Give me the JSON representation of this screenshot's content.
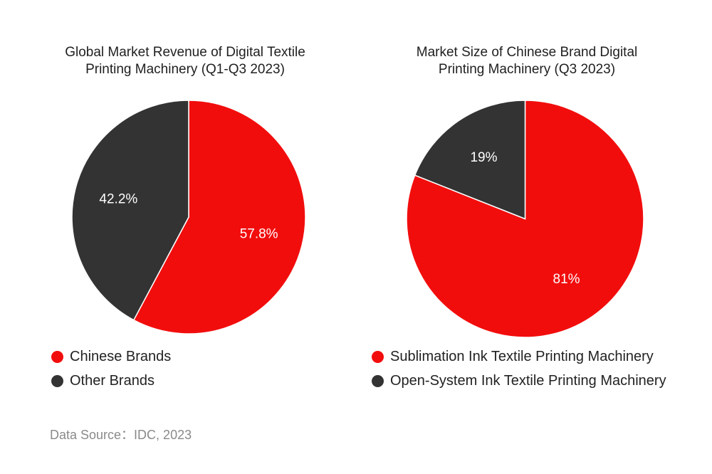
{
  "colors": {
    "red": "#f20d0d",
    "dark": "#333333"
  },
  "chart_data": [
    {
      "type": "pie",
      "title_lines": [
        "Global Market Revenue of Digital Textile",
        "Printing Machinery (Q1-Q3 2023)"
      ],
      "slices": [
        {
          "name": "Chinese Brands",
          "value": 57.8,
          "label": "57.8%",
          "color": "#f20d0d"
        },
        {
          "name": "Other Brands",
          "value": 42.2,
          "label": "42.2%",
          "color": "#333333"
        }
      ],
      "legend_placement": "bottom",
      "start": "12 o'clock, clockwise"
    },
    {
      "type": "pie",
      "title_lines": [
        "Market Size of Chinese Brand Digital",
        "Printing Machinery (Q3 2023)"
      ],
      "slices": [
        {
          "name": "Sublimation Ink Textile Printing Machinery",
          "value": 81,
          "label": "81%",
          "color": "#f20d0d"
        },
        {
          "name": "Open-System Ink Textile Printing Machinery",
          "value": 19,
          "label": "19%",
          "color": "#333333"
        }
      ],
      "legend_placement": "bottom",
      "start": "12 o'clock, clockwise"
    }
  ],
  "footer": {
    "source": "Data Source：IDC, 2023"
  }
}
